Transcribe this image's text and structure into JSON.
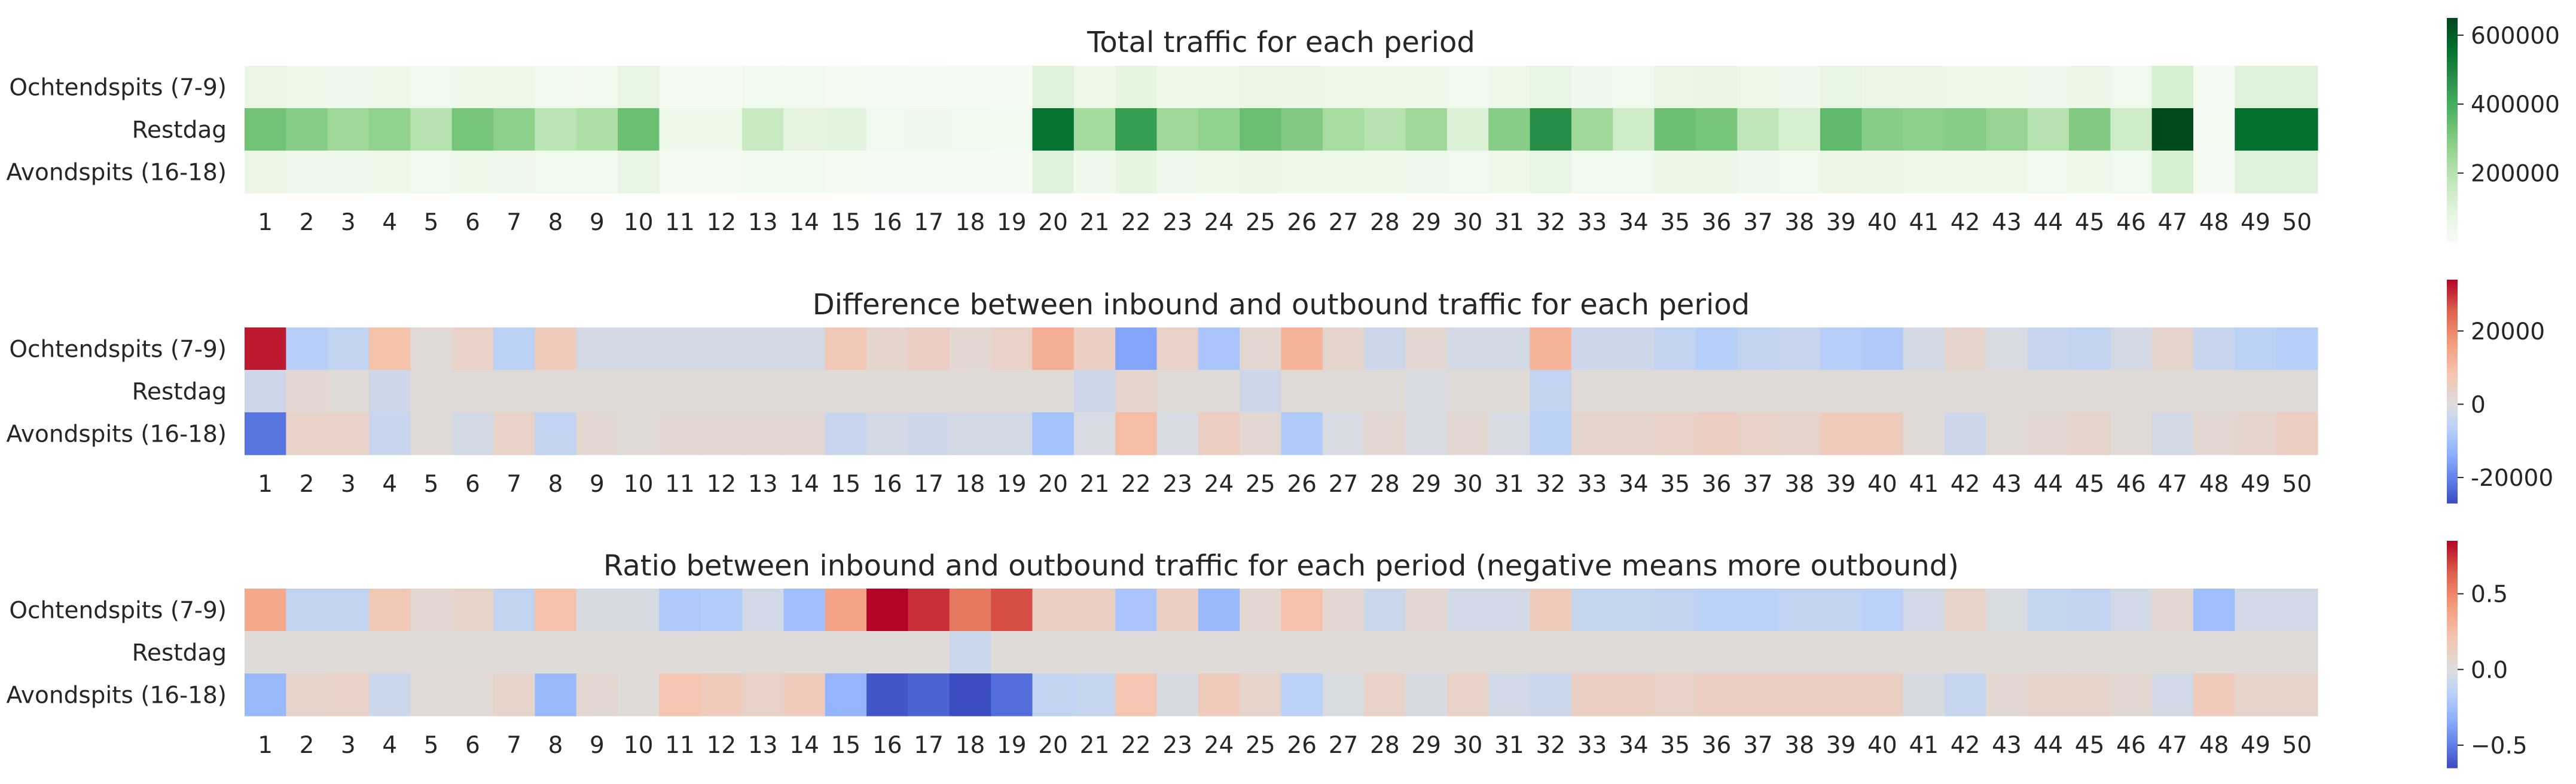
{
  "chart_data": [
    {
      "type": "heatmap",
      "title": "Total traffic for each period",
      "rows": [
        "Ochtendspits (7-9)",
        "Restdag",
        "Avondspits (16-18)"
      ],
      "columns": [
        "1",
        "2",
        "3",
        "4",
        "5",
        "6",
        "7",
        "8",
        "9",
        "10",
        "11",
        "12",
        "13",
        "14",
        "15",
        "16",
        "17",
        "18",
        "19",
        "20",
        "21",
        "22",
        "23",
        "24",
        "25",
        "26",
        "27",
        "28",
        "29",
        "30",
        "31",
        "32",
        "33",
        "34",
        "35",
        "36",
        "37",
        "38",
        "39",
        "40",
        "41",
        "42",
        "43",
        "44",
        "45",
        "46",
        "47",
        "48",
        "49",
        "50"
      ],
      "values": [
        [
          60000,
          45000,
          40000,
          45000,
          30000,
          50000,
          45000,
          30000,
          35000,
          70000,
          20000,
          18000,
          30000,
          25000,
          20000,
          10000,
          12000,
          10000,
          10000,
          100000,
          45000,
          80000,
          45000,
          50000,
          60000,
          55000,
          50000,
          50000,
          45000,
          35000,
          50000,
          70000,
          40000,
          30000,
          60000,
          65000,
          45000,
          40000,
          70000,
          60000,
          55000,
          50000,
          50000,
          40000,
          55000,
          30000,
          120000,
          10000,
          100000,
          100000
        ],
        [
          330000,
          290000,
          250000,
          270000,
          200000,
          320000,
          280000,
          190000,
          220000,
          340000,
          50000,
          50000,
          160000,
          80000,
          90000,
          30000,
          40000,
          30000,
          25000,
          550000,
          240000,
          440000,
          250000,
          270000,
          340000,
          300000,
          230000,
          200000,
          250000,
          110000,
          290000,
          480000,
          250000,
          140000,
          340000,
          320000,
          180000,
          120000,
          360000,
          290000,
          280000,
          290000,
          260000,
          200000,
          300000,
          140000,
          640000,
          20000,
          560000,
          560000
        ],
        [
          60000,
          40000,
          40000,
          45000,
          30000,
          50000,
          40000,
          30000,
          30000,
          70000,
          20000,
          18000,
          25000,
          25000,
          20000,
          10000,
          10000,
          10000,
          10000,
          100000,
          40000,
          80000,
          40000,
          45000,
          55000,
          50000,
          45000,
          45000,
          40000,
          30000,
          45000,
          70000,
          35000,
          30000,
          55000,
          55000,
          40000,
          35000,
          60000,
          55000,
          50000,
          50000,
          45000,
          35000,
          50000,
          30000,
          120000,
          10000,
          100000,
          100000
        ]
      ],
      "colorbar": {
        "colormap": "Greens",
        "ticks": [
          200000,
          400000,
          600000
        ],
        "range": [
          0,
          650000
        ]
      }
    },
    {
      "type": "heatmap",
      "title": "Difference between inbound and outbound traffic for each period",
      "rows": [
        "Ochtendspits (7-9)",
        "Restdag",
        "Avondspits (16-18)"
      ],
      "columns": [
        "1",
        "2",
        "3",
        "4",
        "5",
        "6",
        "7",
        "8",
        "9",
        "10",
        "11",
        "12",
        "13",
        "14",
        "15",
        "16",
        "17",
        "18",
        "19",
        "20",
        "21",
        "22",
        "23",
        "24",
        "25",
        "26",
        "27",
        "28",
        "29",
        "30",
        "31",
        "32",
        "33",
        "34",
        "35",
        "36",
        "37",
        "38",
        "39",
        "40",
        "41",
        "42",
        "43",
        "44",
        "45",
        "46",
        "47",
        "48",
        "49",
        "50"
      ],
      "values": [
        [
          32000,
          -7000,
          -5000,
          9000,
          1000,
          4000,
          -6000,
          6000,
          -2000,
          -2000,
          -2000,
          -2000,
          -2000,
          -2000,
          7000,
          3000,
          5000,
          2000,
          4000,
          13000,
          5000,
          -15000,
          4000,
          -9000,
          2000,
          12000,
          3000,
          -3000,
          2000,
          -2000,
          -2000,
          12000,
          -3000,
          -3000,
          -5000,
          -7000,
          -5000,
          -4000,
          -7000,
          -8000,
          -2000,
          3000,
          -1000,
          -4000,
          -5000,
          -2000,
          3000,
          -4000,
          -6000,
          -7000
        ],
        [
          -3000,
          2000,
          1000,
          -3000,
          1000,
          1000,
          1000,
          1000,
          1000,
          1000,
          1000,
          1000,
          1000,
          1000,
          1000,
          1000,
          1000,
          1000,
          1000,
          1000,
          -3000,
          3000,
          1000,
          1000,
          -3000,
          1000,
          1000,
          1000,
          -1000,
          1000,
          1000,
          -5000,
          1000,
          1000,
          1000,
          1000,
          1000,
          1000,
          1000,
          1000,
          1000,
          1000,
          1000,
          1000,
          1000,
          1000,
          1000,
          1000,
          1000,
          1000
        ],
        [
          -22000,
          4000,
          4000,
          -4000,
          1000,
          -2000,
          4000,
          -5000,
          2000,
          1000,
          2000,
          2000,
          2000,
          2000,
          -4000,
          -2000,
          -3000,
          -2000,
          -2000,
          -10000,
          -1000,
          10000,
          -1000,
          5000,
          2000,
          -8000,
          -1000,
          2000,
          -1000,
          2000,
          -1000,
          -6000,
          3000,
          3000,
          4000,
          5000,
          4000,
          3000,
          6000,
          6000,
          1000,
          -3000,
          1000,
          2000,
          3000,
          1000,
          -2000,
          2000,
          3000,
          5000
        ]
      ],
      "colorbar": {
        "colormap": "coolwarm",
        "ticks": [
          -20000,
          0,
          20000
        ],
        "range": [
          -27000,
          34000
        ]
      }
    },
    {
      "type": "heatmap",
      "title": "Ratio between inbound and outbound traffic for each period (negative means more outbound)",
      "rows": [
        "Ochtendspits (7-9)",
        "Restdag",
        "Avondspits (16-18)"
      ],
      "columns": [
        "1",
        "2",
        "3",
        "4",
        "5",
        "6",
        "7",
        "8",
        "9",
        "10",
        "11",
        "12",
        "13",
        "14",
        "15",
        "16",
        "17",
        "18",
        "19",
        "20",
        "21",
        "22",
        "23",
        "24",
        "25",
        "26",
        "27",
        "28",
        "29",
        "30",
        "31",
        "32",
        "33",
        "34",
        "35",
        "36",
        "37",
        "38",
        "39",
        "40",
        "41",
        "42",
        "43",
        "44",
        "45",
        "46",
        "47",
        "48",
        "49",
        "50"
      ],
      "values": [
        [
          0.35,
          -0.12,
          -0.12,
          0.18,
          0.05,
          0.08,
          -0.12,
          0.22,
          -0.03,
          -0.03,
          -0.2,
          -0.18,
          -0.05,
          -0.25,
          0.38,
          0.85,
          0.75,
          0.55,
          0.68,
          0.12,
          0.12,
          -0.22,
          0.12,
          -0.28,
          0.05,
          0.22,
          0.05,
          -0.08,
          0.05,
          -0.05,
          -0.05,
          0.15,
          -0.1,
          -0.1,
          -0.12,
          -0.15,
          -0.15,
          -0.12,
          -0.12,
          -0.15,
          -0.05,
          0.08,
          -0.02,
          -0.1,
          -0.12,
          -0.05,
          0.05,
          -0.25,
          -0.05,
          -0.05
        ],
        [
          0.02,
          0.02,
          0.02,
          0.02,
          0.02,
          0.02,
          0.02,
          0.02,
          0.02,
          0.02,
          0.02,
          0.02,
          0.02,
          0.02,
          0.02,
          0.02,
          0.02,
          -0.08,
          0.02,
          0.02,
          0.02,
          0.02,
          0.02,
          0.02,
          0.02,
          0.02,
          0.02,
          0.02,
          0.02,
          0.02,
          0.02,
          0.02,
          0.02,
          0.02,
          0.02,
          0.02,
          0.02,
          0.02,
          0.02,
          0.02,
          0.02,
          0.02,
          0.02,
          0.02,
          0.02,
          0.02,
          0.02,
          0.02,
          0.02,
          0.02
        ],
        [
          -0.28,
          0.08,
          0.1,
          -0.08,
          0.03,
          0.03,
          0.08,
          -0.28,
          0.05,
          0.02,
          0.2,
          0.15,
          0.1,
          0.15,
          -0.3,
          -0.62,
          -0.58,
          -0.65,
          -0.55,
          -0.12,
          -0.1,
          0.2,
          -0.03,
          0.15,
          0.08,
          -0.15,
          -0.02,
          0.1,
          -0.03,
          0.1,
          -0.05,
          -0.08,
          0.12,
          0.12,
          0.1,
          0.12,
          0.12,
          0.12,
          0.12,
          0.12,
          -0.03,
          -0.1,
          0.05,
          0.08,
          0.08,
          0.05,
          -0.05,
          0.15,
          0.08,
          0.08
        ]
      ],
      "colorbar": {
        "colormap": "coolwarm",
        "ticks": [
          -0.5,
          0.0,
          0.5
        ],
        "tick_labels": [
          "−0.5",
          "0.0",
          "0.5"
        ],
        "range": [
          -0.65,
          0.85
        ]
      }
    }
  ]
}
